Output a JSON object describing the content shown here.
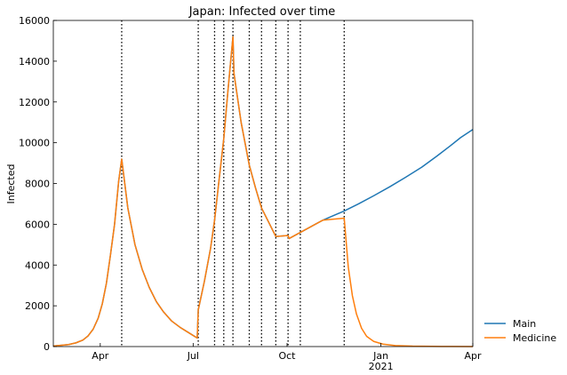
{
  "chart_data": {
    "type": "line",
    "title": "Japan: Infected over time",
    "xlabel": "",
    "ylabel": "Infected",
    "xlim": [
      "2020-02-15",
      "2021-04-01"
    ],
    "ylim": [
      0,
      16000
    ],
    "y_ticks": [
      0,
      2000,
      4000,
      6000,
      8000,
      10000,
      12000,
      14000,
      16000
    ],
    "x_ticks": [
      {
        "date": "2020-04-01",
        "label": "Apr",
        "sublabel": ""
      },
      {
        "date": "2020-07-01",
        "label": "Jul",
        "sublabel": ""
      },
      {
        "date": "2020-10-01",
        "label": "Oct",
        "sublabel": ""
      },
      {
        "date": "2021-01-01",
        "label": "Jan",
        "sublabel": "2021"
      },
      {
        "date": "2021-04-01",
        "label": "Apr",
        "sublabel": ""
      }
    ],
    "vlines": [
      "2020-04-22",
      "2020-07-06",
      "2020-07-22",
      "2020-07-31",
      "2020-08-09",
      "2020-08-25",
      "2020-09-06",
      "2020-09-20",
      "2020-10-02",
      "2020-10-14",
      "2020-11-26"
    ],
    "legend_position": "bottom-right-outside",
    "grid": false,
    "series": [
      {
        "name": "Main",
        "color": "#1f77b4",
        "points": [
          [
            "2020-02-15",
            30
          ],
          [
            "2020-02-22",
            60
          ],
          [
            "2020-03-01",
            100
          ],
          [
            "2020-03-08",
            180
          ],
          [
            "2020-03-15",
            320
          ],
          [
            "2020-03-20",
            520
          ],
          [
            "2020-03-25",
            850
          ],
          [
            "2020-03-30",
            1400
          ],
          [
            "2020-04-03",
            2100
          ],
          [
            "2020-04-07",
            3100
          ],
          [
            "2020-04-11",
            4500
          ],
          [
            "2020-04-15",
            6000
          ],
          [
            "2020-04-19",
            8100
          ],
          [
            "2020-04-22",
            9200
          ],
          [
            "2020-04-28",
            6800
          ],
          [
            "2020-05-05",
            5000
          ],
          [
            "2020-05-12",
            3800
          ],
          [
            "2020-05-19",
            2900
          ],
          [
            "2020-05-26",
            2200
          ],
          [
            "2020-06-02",
            1700
          ],
          [
            "2020-06-10",
            1250
          ],
          [
            "2020-06-18",
            950
          ],
          [
            "2020-06-26",
            700
          ],
          [
            "2020-07-05",
            420
          ],
          [
            "2020-07-06",
            1800
          ],
          [
            "2020-07-12",
            3200
          ],
          [
            "2020-07-18",
            4800
          ],
          [
            "2020-07-22",
            6200
          ],
          [
            "2020-07-26",
            8000
          ],
          [
            "2020-07-31",
            10200
          ],
          [
            "2020-08-04",
            12500
          ],
          [
            "2020-08-09",
            15200
          ],
          [
            "2020-08-10",
            13400
          ],
          [
            "2020-08-17",
            11000
          ],
          [
            "2020-08-25",
            8900
          ],
          [
            "2020-08-31",
            7800
          ],
          [
            "2020-09-06",
            6800
          ],
          [
            "2020-09-13",
            6100
          ],
          [
            "2020-09-20",
            5400
          ],
          [
            "2020-10-02",
            5450
          ],
          [
            "2020-10-03",
            5300
          ],
          [
            "2020-10-14",
            5600
          ],
          [
            "2020-10-25",
            5900
          ],
          [
            "2020-11-05",
            6200
          ],
          [
            "2020-11-26",
            6650
          ],
          [
            "2020-12-10",
            7000
          ],
          [
            "2020-12-25",
            7400
          ],
          [
            "2021-01-10",
            7850
          ],
          [
            "2021-01-25",
            8300
          ],
          [
            "2021-02-10",
            8800
          ],
          [
            "2021-02-25",
            9350
          ],
          [
            "2021-03-10",
            9850
          ],
          [
            "2021-03-20",
            10250
          ],
          [
            "2021-04-01",
            10650
          ]
        ]
      },
      {
        "name": "Medicine",
        "color": "#ff7f0e",
        "points": [
          [
            "2020-02-15",
            30
          ],
          [
            "2020-02-22",
            60
          ],
          [
            "2020-03-01",
            100
          ],
          [
            "2020-03-08",
            180
          ],
          [
            "2020-03-15",
            320
          ],
          [
            "2020-03-20",
            520
          ],
          [
            "2020-03-25",
            850
          ],
          [
            "2020-03-30",
            1400
          ],
          [
            "2020-04-03",
            2100
          ],
          [
            "2020-04-07",
            3100
          ],
          [
            "2020-04-11",
            4500
          ],
          [
            "2020-04-15",
            6000
          ],
          [
            "2020-04-19",
            8100
          ],
          [
            "2020-04-22",
            9200
          ],
          [
            "2020-04-28",
            6800
          ],
          [
            "2020-05-05",
            5000
          ],
          [
            "2020-05-12",
            3800
          ],
          [
            "2020-05-19",
            2900
          ],
          [
            "2020-05-26",
            2200
          ],
          [
            "2020-06-02",
            1700
          ],
          [
            "2020-06-10",
            1250
          ],
          [
            "2020-06-18",
            950
          ],
          [
            "2020-06-26",
            700
          ],
          [
            "2020-07-05",
            420
          ],
          [
            "2020-07-06",
            1800
          ],
          [
            "2020-07-12",
            3200
          ],
          [
            "2020-07-18",
            4800
          ],
          [
            "2020-07-22",
            6200
          ],
          [
            "2020-07-26",
            8000
          ],
          [
            "2020-07-31",
            10200
          ],
          [
            "2020-08-04",
            12500
          ],
          [
            "2020-08-09",
            15200
          ],
          [
            "2020-08-10",
            13400
          ],
          [
            "2020-08-17",
            11000
          ],
          [
            "2020-08-25",
            8900
          ],
          [
            "2020-08-31",
            7800
          ],
          [
            "2020-09-06",
            6800
          ],
          [
            "2020-09-13",
            6100
          ],
          [
            "2020-09-20",
            5400
          ],
          [
            "2020-10-02",
            5450
          ],
          [
            "2020-10-03",
            5300
          ],
          [
            "2020-10-14",
            5600
          ],
          [
            "2020-10-25",
            5900
          ],
          [
            "2020-11-05",
            6200
          ],
          [
            "2020-11-26",
            6300
          ],
          [
            "2020-11-30",
            3900
          ],
          [
            "2020-12-04",
            2500
          ],
          [
            "2020-12-08",
            1600
          ],
          [
            "2020-12-13",
            900
          ],
          [
            "2020-12-18",
            500
          ],
          [
            "2020-12-25",
            250
          ],
          [
            "2021-01-03",
            120
          ],
          [
            "2021-01-15",
            50
          ],
          [
            "2021-02-01",
            20
          ],
          [
            "2021-03-01",
            5
          ],
          [
            "2021-04-01",
            2
          ]
        ]
      }
    ]
  }
}
